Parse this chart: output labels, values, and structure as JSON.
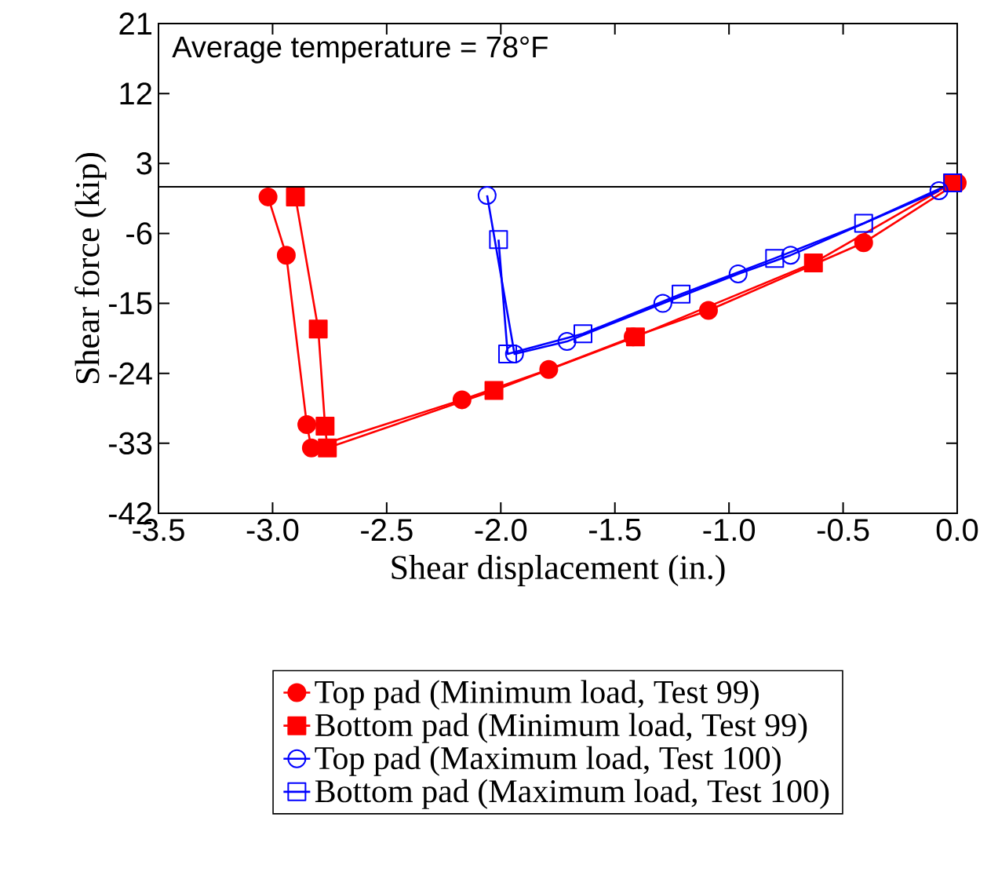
{
  "chart_data": {
    "type": "line",
    "xlabel": "Shear displacement (in.)",
    "ylabel": "Shear force (kip)",
    "annotations": [
      "Average temperature = 78°F"
    ],
    "xlim": [
      -3.5,
      0
    ],
    "ylim": [
      -42,
      21
    ],
    "xticks": [
      -3.5,
      {
        "value": -3,
        "label": "-3.0"
      },
      -2.5,
      {
        "value": -2,
        "label": "-2.0"
      },
      -1.5,
      {
        "value": -1,
        "label": "-1.0"
      },
      -0.5,
      {
        "value": 0,
        "label": "0.0"
      }
    ],
    "yticks": [
      21,
      12,
      3,
      -6,
      -15,
      -24,
      -33,
      -42
    ],
    "ref_lines": [
      {
        "axis": "y",
        "value": 0,
        "color": "#000000"
      }
    ],
    "grid": false,
    "legend": "bottom",
    "line_style": "solid",
    "series": [
      {
        "name": "Top pad (Minimum load, Test 99)",
        "color": "#ff0000",
        "marker": "circle",
        "x": [
          0,
          -0.41,
          -1.09,
          -1.42,
          -1.79,
          -2.17,
          -2.83,
          -2.85,
          -2.94,
          -3.02
        ],
        "values": [
          0.5,
          -7.2,
          -15.9,
          -19.3,
          -23.5,
          -27.4,
          -33.6,
          -30.6,
          -8.8,
          -1.3
        ]
      },
      {
        "name": "Bottom pad (Minimum load, Test 99)",
        "color": "#ff0000",
        "marker": "square",
        "x": [
          -0.02,
          -0.63,
          -1.41,
          -2.03,
          -2.76,
          -2.77,
          -2.8,
          -2.9
        ],
        "values": [
          0.5,
          -9.8,
          -19.3,
          -26.2,
          -33.6,
          -30.8,
          -18.3,
          -1.3
        ]
      },
      {
        "name": "Top pad (Maximum load, Test 100)",
        "color": "#0000ff",
        "marker": "circle",
        "x": [
          -0.08,
          -0.73,
          -0.96,
          -1.29,
          -1.71,
          -1.94,
          -2.06
        ],
        "values": [
          -0.5,
          -8.8,
          -11.2,
          -15.0,
          -19.9,
          -21.5,
          -1.1
        ]
      },
      {
        "name": "Bottom pad (Maximum load, Test 100)",
        "color": "#0000ff",
        "marker": "square",
        "x": [
          -0.02,
          -0.41,
          -0.8,
          -1.21,
          -1.64,
          -1.97,
          -2.01
        ],
        "values": [
          0.5,
          -4.7,
          -9.2,
          -13.8,
          -18.9,
          -21.5,
          -6.8
        ]
      }
    ]
  }
}
